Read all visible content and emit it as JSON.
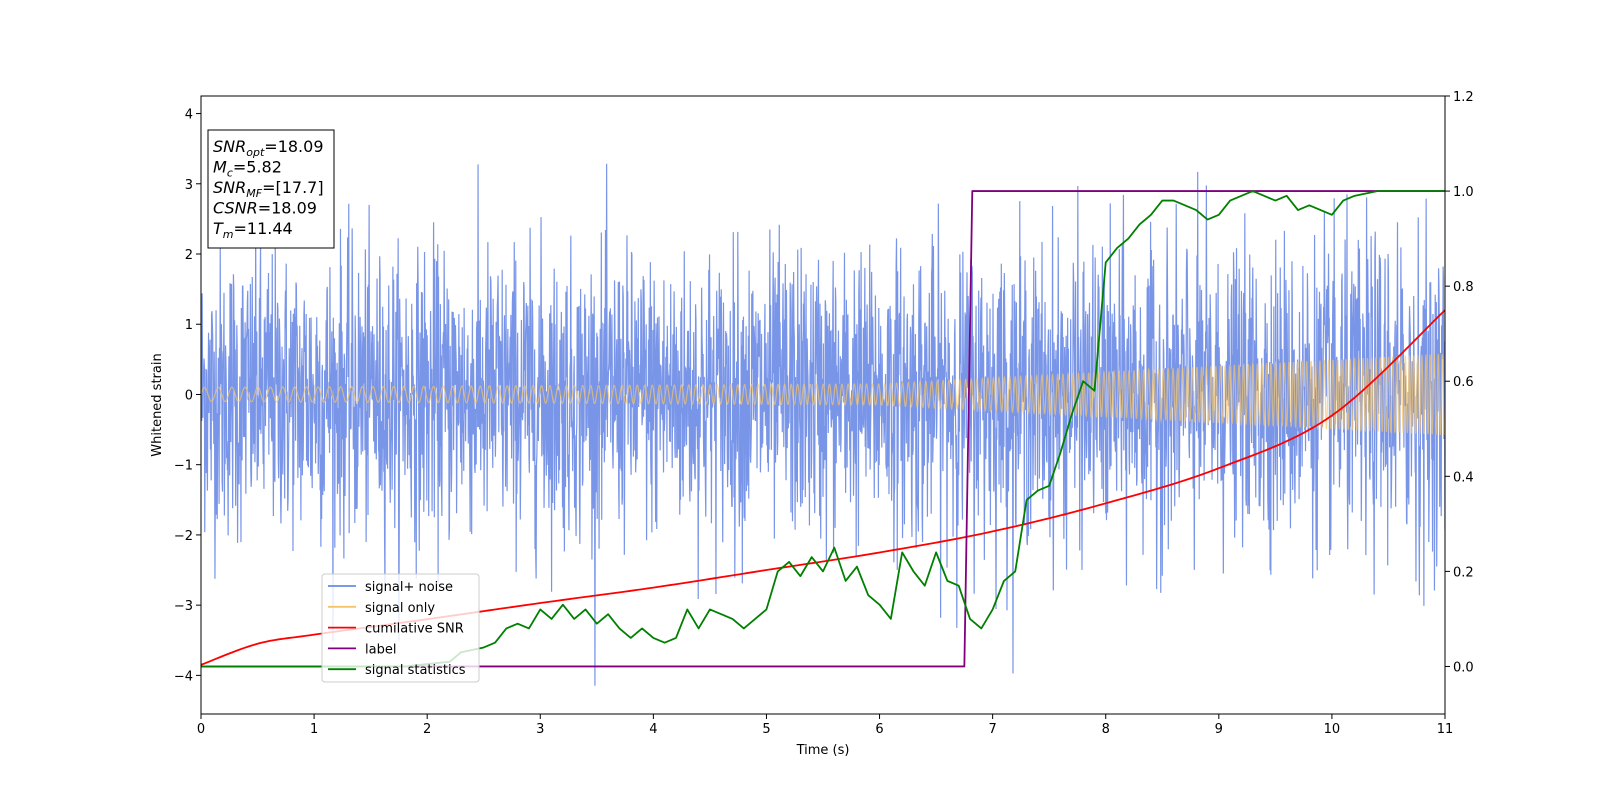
{
  "chart_data": {
    "type": "line",
    "xlabel": "Time (s)",
    "ylabel": "Whitened strain",
    "xlim": [
      0,
      11
    ],
    "ylim": [
      -4.55,
      4.25
    ],
    "y2lim": [
      -0.1,
      1.2
    ],
    "x_ticks": [
      "0",
      "1",
      "2",
      "3",
      "4",
      "5",
      "6",
      "7",
      "8",
      "9",
      "10",
      "11"
    ],
    "y_ticks": [
      "4",
      "3",
      "2",
      "1",
      "0",
      "−1",
      "−2",
      "−3",
      "−4"
    ],
    "y2_ticks": [
      "1.2",
      "1.0",
      "0.8",
      "0.6",
      "0.4",
      "0.2",
      "0.0"
    ],
    "legend_position": "lower-left",
    "colors": {
      "signal_noise": "#6a8ae6",
      "signal_only": "#f5c46a",
      "cumulative_snr": "#ff0000",
      "label": "#800080",
      "signal_statistics": "#008000"
    },
    "series": [
      {
        "name": "signal+ noise",
        "axis": "left",
        "color": "#6a8ae6",
        "description_values": {
          "noise_std": 1.0,
          "max_abs": 4.0
        }
      },
      {
        "name": "signal only",
        "axis": "left",
        "color": "#f5c46a",
        "envelope": {
          "x": [
            0,
            6,
            11
          ],
          "amplitude": [
            0.1,
            0.15,
            0.58
          ]
        }
      },
      {
        "name": "cumilative SNR",
        "axis": "left",
        "color": "#ff0000",
        "x": [
          0,
          0.5,
          1,
          2,
          3,
          4,
          5,
          6,
          7,
          8,
          9,
          10,
          11
        ],
        "values": [
          -3.85,
          -3.55,
          -3.42,
          -3.2,
          -2.97,
          -2.75,
          -2.5,
          -2.25,
          -1.95,
          -1.55,
          -1.05,
          -0.3,
          1.2
        ]
      },
      {
        "name": "label",
        "axis": "right",
        "color": "#800080",
        "x": [
          0,
          6.75,
          6.82,
          11
        ],
        "values": [
          0.0,
          0.0,
          1.0,
          1.0
        ]
      },
      {
        "name": "signal statistics",
        "axis": "right",
        "color": "#008000",
        "x": [
          0,
          1.8,
          2.0,
          2.2,
          2.3,
          2.5,
          2.6,
          2.7,
          2.8,
          2.9,
          3.0,
          3.1,
          3.2,
          3.3,
          3.4,
          3.5,
          3.6,
          3.7,
          3.8,
          3.9,
          4.0,
          4.1,
          4.2,
          4.3,
          4.4,
          4.5,
          4.6,
          4.7,
          4.8,
          4.9,
          5.0,
          5.1,
          5.2,
          5.3,
          5.4,
          5.5,
          5.6,
          5.7,
          5.8,
          5.9,
          6.0,
          6.1,
          6.2,
          6.3,
          6.4,
          6.5,
          6.6,
          6.7,
          6.8,
          6.9,
          7.0,
          7.1,
          7.2,
          7.3,
          7.4,
          7.5,
          7.6,
          7.7,
          7.8,
          7.9,
          8.0,
          8.1,
          8.2,
          8.3,
          8.4,
          8.5,
          8.6,
          8.7,
          8.8,
          8.9,
          9.0,
          9.1,
          9.2,
          9.3,
          9.4,
          9.5,
          9.6,
          9.7,
          9.8,
          9.9,
          10.0,
          10.1,
          10.2,
          10.4,
          10.6,
          10.8,
          11.0
        ],
        "values": [
          0.0,
          0.0,
          0.005,
          0.01,
          0.03,
          0.04,
          0.05,
          0.08,
          0.09,
          0.08,
          0.12,
          0.1,
          0.13,
          0.1,
          0.12,
          0.09,
          0.11,
          0.08,
          0.06,
          0.08,
          0.06,
          0.05,
          0.06,
          0.12,
          0.08,
          0.12,
          0.11,
          0.1,
          0.08,
          0.1,
          0.12,
          0.2,
          0.22,
          0.19,
          0.23,
          0.2,
          0.25,
          0.18,
          0.21,
          0.15,
          0.13,
          0.1,
          0.24,
          0.2,
          0.17,
          0.24,
          0.18,
          0.17,
          0.1,
          0.08,
          0.12,
          0.18,
          0.2,
          0.35,
          0.37,
          0.38,
          0.45,
          0.53,
          0.6,
          0.58,
          0.85,
          0.88,
          0.9,
          0.93,
          0.95,
          0.98,
          0.98,
          0.97,
          0.96,
          0.94,
          0.95,
          0.98,
          0.99,
          1.0,
          0.99,
          0.98,
          0.99,
          0.96,
          0.97,
          0.96,
          0.95,
          0.98,
          0.99,
          1.0,
          1.0,
          1.0,
          1.0
        ]
      }
    ],
    "annotation": {
      "lines": [
        {
          "var": "SNR",
          "sub": "opt",
          "value": "=18.09"
        },
        {
          "var": "M",
          "sub": "c",
          "value": "=5.82"
        },
        {
          "var": "SNR",
          "sub": "MF",
          "value": "=[17.7]"
        },
        {
          "var": "CSNR",
          "sub": "",
          "value": "=18.09"
        },
        {
          "var": "T",
          "sub": "m",
          "value": "=11.44"
        }
      ]
    },
    "legend": {
      "entries": [
        "signal+ noise",
        "signal only",
        "cumilative SNR",
        "label",
        "signal statistics"
      ]
    }
  }
}
